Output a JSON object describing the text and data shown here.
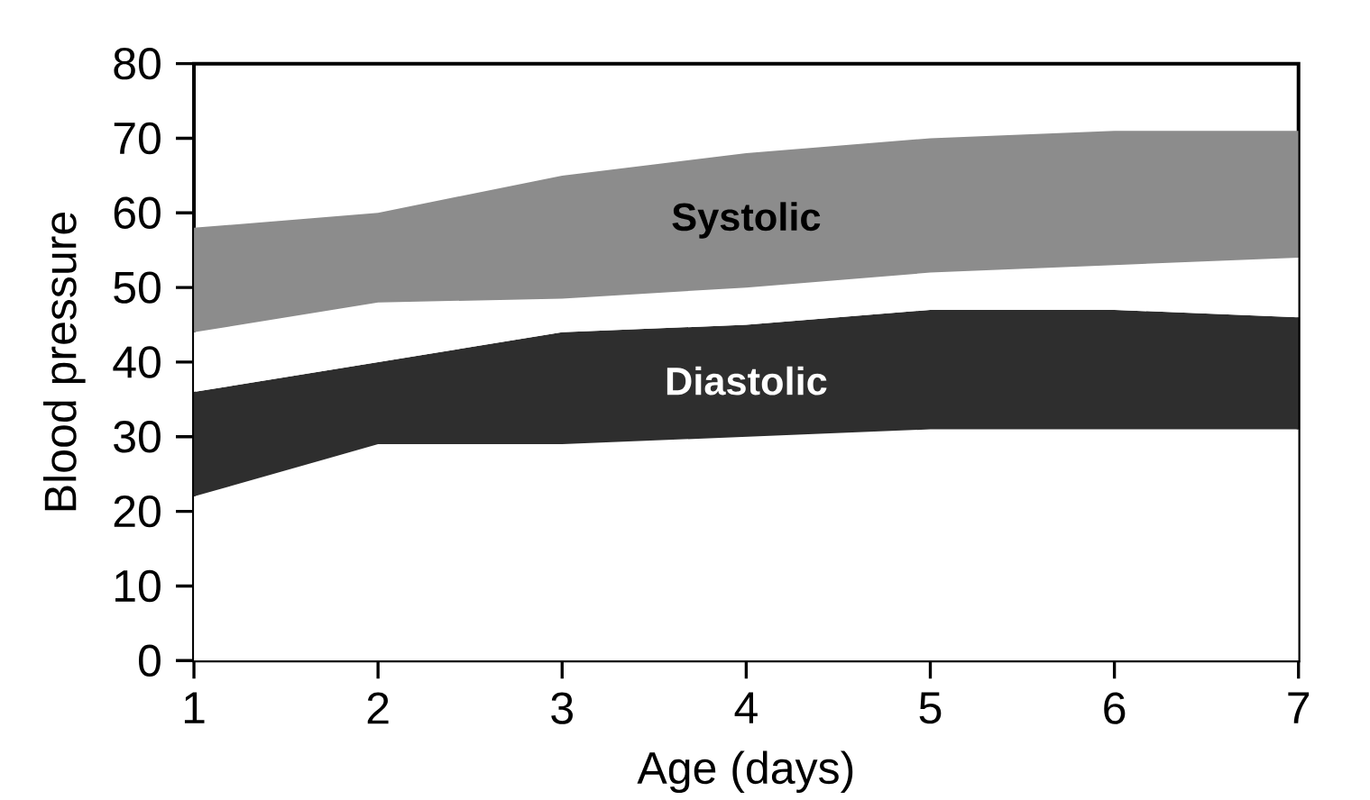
{
  "chart_data": {
    "type": "area",
    "stacked": true,
    "xlabel": "Age (days)",
    "ylabel": "Blood pressure",
    "x": [
      1,
      2,
      3,
      4,
      5,
      6,
      7
    ],
    "series": [
      {
        "color": "#ffffff",
        "values": [
          22,
          29,
          29,
          30,
          31,
          31,
          31
        ]
      },
      {
        "name": "Diastolic",
        "color": "#2e2e2e",
        "values": [
          14,
          11,
          15,
          15,
          16,
          16,
          15
        ]
      },
      {
        "color": "#ffffff",
        "values": [
          8,
          8,
          4.5,
          5,
          5,
          6,
          8
        ]
      },
      {
        "name": "Systolic",
        "color": "#8c8c8c",
        "values": [
          14,
          12,
          16.5,
          18,
          18,
          18,
          17
        ]
      }
    ],
    "xlim": [
      1,
      7
    ],
    "xticks": [
      1,
      2,
      3,
      4,
      5,
      6,
      7
    ],
    "ylim": [
      0,
      80
    ],
    "yticks": [
      0,
      10,
      20,
      30,
      40,
      50,
      60,
      70,
      80
    ],
    "grid": false,
    "legend": false
  }
}
